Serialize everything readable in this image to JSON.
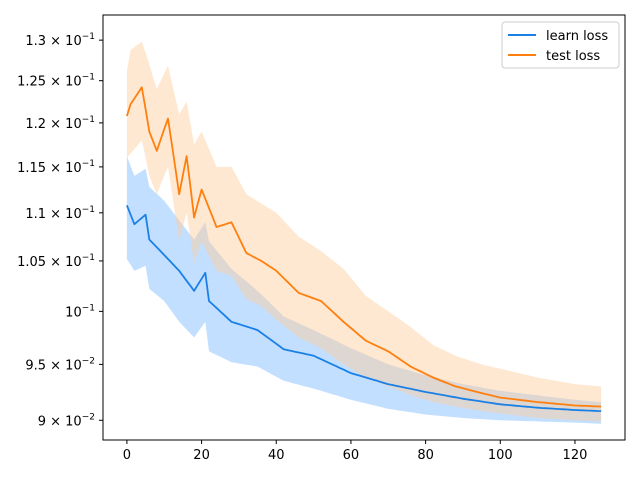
{
  "chart_data": {
    "type": "line",
    "title": "",
    "xlabel": "",
    "ylabel": "",
    "xlim": [
      -6.4,
      133.4
    ],
    "ylim": [
      0.0883,
      0.1332
    ],
    "yscale": "log",
    "grid": false,
    "legend_position": "top-right",
    "x_ticks": [
      0,
      20,
      40,
      60,
      80,
      100,
      120
    ],
    "x_tick_labels": [
      "0",
      "20",
      "40",
      "60",
      "80",
      "100",
      "120"
    ],
    "y_ticks": [
      {
        "value": 0.09,
        "mantissa": "9",
        "exponent": "−2"
      },
      {
        "value": 0.095,
        "mantissa": "9.5",
        "exponent": "−2"
      },
      {
        "value": 0.1,
        "mantissa": "",
        "exponent": "−1"
      },
      {
        "value": 0.105,
        "mantissa": "1.05",
        "exponent": "−1"
      },
      {
        "value": 0.11,
        "mantissa": "1.1",
        "exponent": "−1"
      },
      {
        "value": 0.115,
        "mantissa": "1.15",
        "exponent": "−1"
      },
      {
        "value": 0.12,
        "mantissa": "1.2",
        "exponent": "−1"
      },
      {
        "value": 0.125,
        "mantissa": "1.25",
        "exponent": "−1"
      },
      {
        "value": 0.13,
        "mantissa": "1.3",
        "exponent": "−1"
      }
    ],
    "series": [
      {
        "name": "learn loss",
        "color": "#1a80e6",
        "band_color": "#7ab8ff",
        "anchors": [
          [
            0,
            0.1108,
            0.1162,
            0.1052
          ],
          [
            2,
            0.1088,
            0.114,
            0.104
          ],
          [
            5,
            0.1098,
            0.1148,
            0.1045
          ],
          [
            6,
            0.1072,
            0.1128,
            0.1022
          ],
          [
            10,
            0.1056,
            0.1113,
            0.101
          ],
          [
            14,
            0.104,
            0.1092,
            0.099
          ],
          [
            18,
            0.102,
            0.1072,
            0.0975
          ],
          [
            21,
            0.1038,
            0.109,
            0.099
          ],
          [
            22,
            0.101,
            0.107,
            0.0962
          ],
          [
            28,
            0.099,
            0.1042,
            0.0952
          ],
          [
            35,
            0.0982,
            0.102,
            0.0948
          ],
          [
            42,
            0.0964,
            0.0995,
            0.0935
          ],
          [
            50,
            0.0958,
            0.0982,
            0.0928
          ],
          [
            60,
            0.0942,
            0.0965,
            0.0918
          ],
          [
            70,
            0.0932,
            0.095,
            0.091
          ],
          [
            80,
            0.0925,
            0.094,
            0.0905
          ],
          [
            90,
            0.0919,
            0.0932,
            0.0902
          ],
          [
            100,
            0.0914,
            0.0926,
            0.09
          ],
          [
            110,
            0.0911,
            0.0922,
            0.0899
          ],
          [
            120,
            0.0909,
            0.0918,
            0.0898
          ],
          [
            127,
            0.0908,
            0.0916,
            0.0897
          ]
        ]
      },
      {
        "name": "test loss",
        "color": "#ff7f0e",
        "band_color": "#ffcc99",
        "anchors": [
          [
            0,
            0.1208,
            0.1262,
            0.116
          ],
          [
            1,
            0.1222,
            0.1288,
            0.1165
          ],
          [
            4,
            0.1242,
            0.1298,
            0.118
          ],
          [
            6,
            0.119,
            0.127,
            0.114
          ],
          [
            8,
            0.1168,
            0.124,
            0.112
          ],
          [
            11,
            0.1205,
            0.1268,
            0.115
          ],
          [
            14,
            0.112,
            0.121,
            0.107
          ],
          [
            16,
            0.1162,
            0.1225,
            0.11
          ],
          [
            18,
            0.1095,
            0.1175,
            0.1048
          ],
          [
            20,
            0.1125,
            0.119,
            0.107
          ],
          [
            24,
            0.1085,
            0.115,
            0.104
          ],
          [
            28,
            0.109,
            0.115,
            0.1035
          ],
          [
            32,
            0.1058,
            0.112,
            0.1012
          ],
          [
            36,
            0.105,
            0.111,
            0.1005
          ],
          [
            40,
            0.104,
            0.11,
            0.0992
          ],
          [
            46,
            0.1018,
            0.1075,
            0.0975
          ],
          [
            52,
            0.101,
            0.106,
            0.0965
          ],
          [
            58,
            0.099,
            0.1042,
            0.095
          ],
          [
            64,
            0.0972,
            0.1015,
            0.0938
          ],
          [
            70,
            0.0962,
            0.1,
            0.093
          ],
          [
            76,
            0.0948,
            0.0985,
            0.0922
          ],
          [
            82,
            0.0938,
            0.0968,
            0.0916
          ],
          [
            88,
            0.093,
            0.0958,
            0.0912
          ],
          [
            95,
            0.0924,
            0.095,
            0.0908
          ],
          [
            100,
            0.092,
            0.0946,
            0.0906
          ],
          [
            110,
            0.0916,
            0.0938,
            0.0902
          ],
          [
            120,
            0.0913,
            0.0932,
            0.09
          ],
          [
            127,
            0.0912,
            0.093,
            0.0899
          ]
        ]
      }
    ]
  }
}
